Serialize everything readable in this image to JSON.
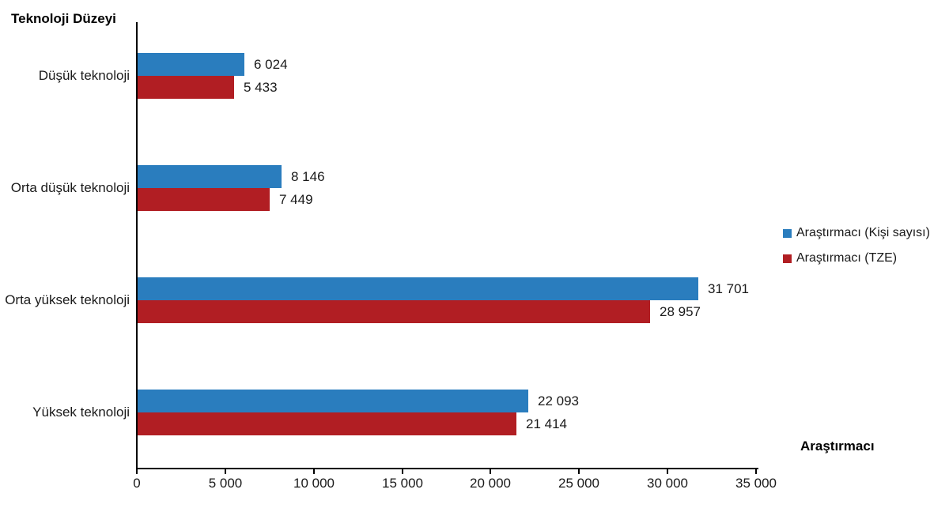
{
  "chart_data": {
    "type": "bar",
    "orientation": "horizontal",
    "title": "",
    "ylabel": "Teknoloji Düzeyi",
    "xlabel": "Araştırmacı",
    "categories": [
      "Düşük teknoloji",
      "Orta düşük teknoloji",
      "Orta yüksek teknoloji",
      "Yüksek teknoloji"
    ],
    "series": [
      {
        "name": "Araştırmacı (Kişi sayısı)",
        "color": "#2A7DBE",
        "values": [
          6024,
          8146,
          31701,
          22093
        ],
        "labels": [
          "6 024",
          "8 146",
          "31 701",
          "22 093"
        ]
      },
      {
        "name": "Araştırmacı (TZE)",
        "color": "#B11E23",
        "values": [
          5433,
          7449,
          28957,
          21414
        ],
        "labels": [
          "5 433",
          "7 449",
          "28 957",
          "21 414"
        ]
      }
    ],
    "x_tick_values": [
      0,
      5000,
      10000,
      15000,
      20000,
      25000,
      30000,
      35000
    ],
    "x_tick_labels": [
      "0",
      "5 000",
      "10 000",
      "15 000",
      "20 000",
      "25 000",
      "30 000",
      "35 000"
    ],
    "xlim": [
      0,
      35000
    ],
    "grid": false,
    "legend_position": "right",
    "text_color": "#1a1a1a",
    "axis_color": "#000000"
  }
}
